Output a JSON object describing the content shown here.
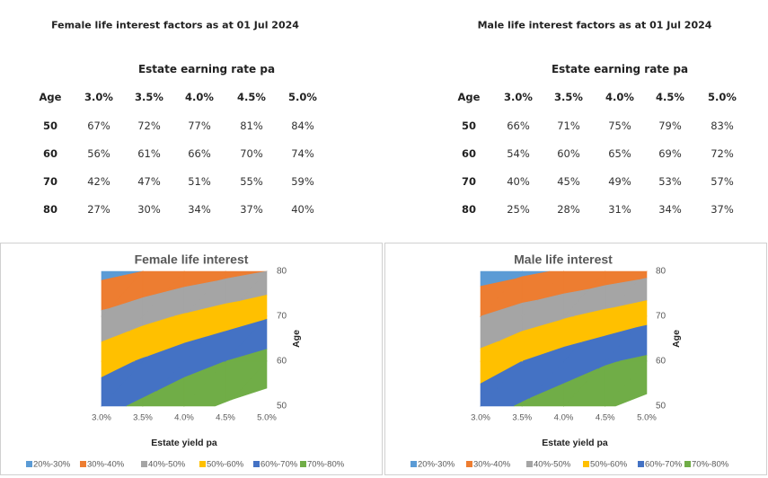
{
  "tables": [
    {
      "title": "Female life interest factors as at 01 Jul 2024",
      "subtitle": "Estate earning rate pa",
      "header": [
        "Age",
        "3.0%",
        "3.5%",
        "4.0%",
        "4.5%",
        "5.0%"
      ],
      "rows": [
        [
          "50",
          "67%",
          "72%",
          "77%",
          "81%",
          "84%"
        ],
        [
          "60",
          "56%",
          "61%",
          "66%",
          "70%",
          "74%"
        ],
        [
          "70",
          "42%",
          "47%",
          "51%",
          "55%",
          "59%"
        ],
        [
          "80",
          "27%",
          "30%",
          "34%",
          "37%",
          "40%"
        ]
      ]
    },
    {
      "title": "Male life interest factors as at 01 Jul 2024",
      "subtitle": "Estate earning rate pa",
      "header": [
        "Age",
        "3.0%",
        "3.5%",
        "4.0%",
        "4.5%",
        "5.0%"
      ],
      "rows": [
        [
          "50",
          "66%",
          "71%",
          "75%",
          "79%",
          "83%"
        ],
        [
          "60",
          "54%",
          "60%",
          "65%",
          "69%",
          "72%"
        ],
        [
          "70",
          "40%",
          "45%",
          "49%",
          "53%",
          "57%"
        ],
        [
          "80",
          "25%",
          "28%",
          "31%",
          "34%",
          "37%"
        ]
      ]
    }
  ],
  "chart_data": [
    {
      "type": "contour",
      "title": "Female life interest",
      "xlabel": "Estate yield pa",
      "ylabel": "Age",
      "x": [
        3.0,
        3.5,
        4.0,
        4.5,
        5.0
      ],
      "y": [
        50,
        60,
        70,
        80
      ],
      "z": [
        [
          67,
          72,
          77,
          81,
          84
        ],
        [
          56,
          61,
          66,
          70,
          74
        ],
        [
          42,
          47,
          51,
          55,
          59
        ],
        [
          27,
          30,
          34,
          37,
          40
        ]
      ],
      "xlim": [
        3.0,
        5.0
      ],
      "ylim": [
        50,
        80
      ],
      "xticks": [
        {
          "value": 3.0,
          "label": "3.0%"
        },
        {
          "value": 3.5,
          "label": "3.5%"
        },
        {
          "value": 4.0,
          "label": "4.0%"
        },
        {
          "value": 4.5,
          "label": "4.5%"
        },
        {
          "value": 5.0,
          "label": "5.0%"
        }
      ],
      "yticks": [
        50,
        60,
        70,
        80
      ],
      "bands": [
        {
          "label": "20%-30%",
          "lo": 20,
          "hi": 30,
          "color": "#5b9bd5"
        },
        {
          "label": "30%-40%",
          "lo": 30,
          "hi": 40,
          "color": "#ed7d31"
        },
        {
          "label": "40%-50%",
          "lo": 40,
          "hi": 50,
          "color": "#a5a5a5"
        },
        {
          "label": "50%-60%",
          "lo": 50,
          "hi": 60,
          "color": "#ffc000"
        },
        {
          "label": "60%-70%",
          "lo": 60,
          "hi": 70,
          "color": "#4472c4"
        },
        {
          "label": "70%-80%",
          "lo": 70,
          "hi": 80,
          "color": "#70ad47"
        }
      ]
    },
    {
      "type": "contour",
      "title": "Male life interest",
      "xlabel": "Estate yield pa",
      "ylabel": "Age",
      "x": [
        3.0,
        3.5,
        4.0,
        4.5,
        5.0
      ],
      "y": [
        50,
        60,
        70,
        80
      ],
      "z": [
        [
          66,
          71,
          75,
          79,
          83
        ],
        [
          54,
          60,
          65,
          69,
          72
        ],
        [
          40,
          45,
          49,
          53,
          57
        ],
        [
          25,
          28,
          31,
          34,
          37
        ]
      ],
      "xlim": [
        3.0,
        5.0
      ],
      "ylim": [
        50,
        80
      ],
      "xticks": [
        {
          "value": 3.0,
          "label": "3.0%"
        },
        {
          "value": 3.5,
          "label": "3.5%"
        },
        {
          "value": 4.0,
          "label": "4.0%"
        },
        {
          "value": 4.5,
          "label": "4.5%"
        },
        {
          "value": 5.0,
          "label": "5.0%"
        }
      ],
      "yticks": [
        50,
        60,
        70,
        80
      ],
      "bands": [
        {
          "label": "20%-30%",
          "lo": 20,
          "hi": 30,
          "color": "#5b9bd5"
        },
        {
          "label": "30%-40%",
          "lo": 30,
          "hi": 40,
          "color": "#ed7d31"
        },
        {
          "label": "40%-50%",
          "lo": 40,
          "hi": 50,
          "color": "#a5a5a5"
        },
        {
          "label": "50%-60%",
          "lo": 50,
          "hi": 60,
          "color": "#ffc000"
        },
        {
          "label": "60%-70%",
          "lo": 60,
          "hi": 70,
          "color": "#4472c4"
        },
        {
          "label": "70%-80%",
          "lo": 70,
          "hi": 80,
          "color": "#70ad47"
        }
      ]
    }
  ]
}
